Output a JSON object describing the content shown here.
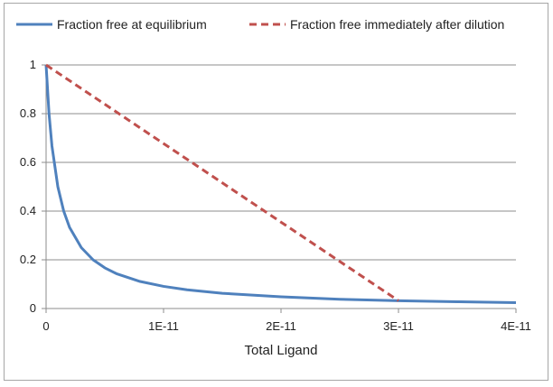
{
  "chart_data": {
    "type": "line",
    "title": "",
    "xlabel": "Total Ligand",
    "ylabel": "",
    "xlim": [
      0,
      4e-11
    ],
    "ylim": [
      0,
      1
    ],
    "x_ticks": [
      0,
      1e-11,
      2e-11,
      3e-11,
      4e-11
    ],
    "x_tick_labels": [
      "0",
      "1E-11",
      "2E-11",
      "3E-11",
      "4E-11"
    ],
    "y_ticks": [
      0,
      0.2,
      0.4,
      0.6,
      0.8,
      1
    ],
    "y_tick_labels": [
      "0",
      "0.2",
      "0.4",
      "0.6",
      "0.8",
      "1"
    ],
    "grid": true,
    "legend_position": "top",
    "series": [
      {
        "name": "Fraction free at equilibrium",
        "color": "#4f81bd",
        "style": "solid",
        "points": [
          [
            0,
            1.0
          ],
          [
            2.5e-13,
            0.8
          ],
          [
            5e-13,
            0.667
          ],
          [
            1e-12,
            0.5
          ],
          [
            1.5e-12,
            0.4
          ],
          [
            2e-12,
            0.333
          ],
          [
            3e-12,
            0.25
          ],
          [
            4e-12,
            0.2
          ],
          [
            5e-12,
            0.167
          ],
          [
            6e-12,
            0.143
          ],
          [
            8e-12,
            0.111
          ],
          [
            1e-11,
            0.091
          ],
          [
            1.2e-11,
            0.077
          ],
          [
            1.5e-11,
            0.0625
          ],
          [
            2e-11,
            0.048
          ],
          [
            2.5e-11,
            0.038
          ],
          [
            3e-11,
            0.032
          ],
          [
            3.5e-11,
            0.028
          ],
          [
            4e-11,
            0.024
          ]
        ]
      },
      {
        "name": "Fraction free immediately after dilution",
        "color": "#c0504d",
        "style": "dashed",
        "points": [
          [
            0,
            1.0
          ],
          [
            3e-11,
            0.032
          ]
        ]
      }
    ]
  }
}
